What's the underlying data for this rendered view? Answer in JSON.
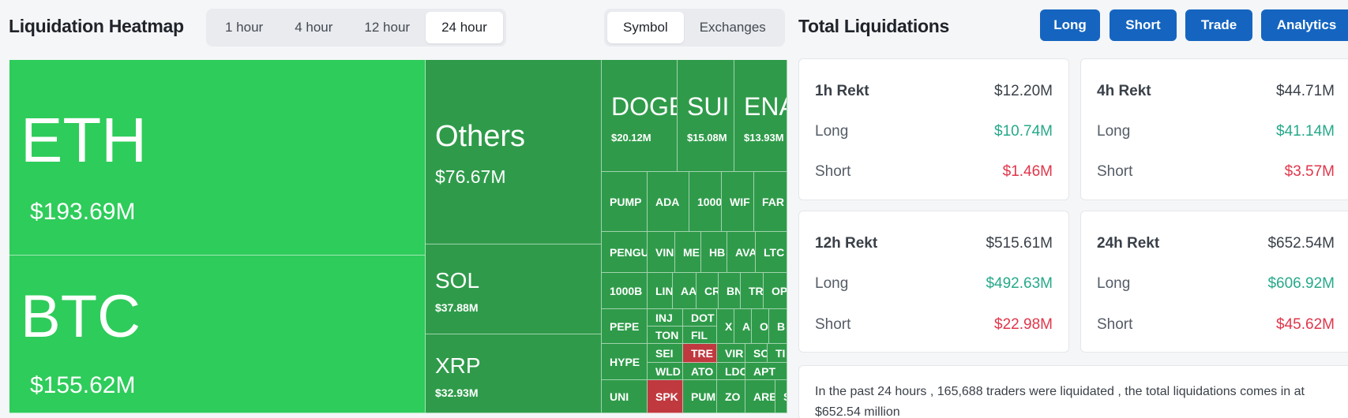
{
  "header": {
    "heatmap_title": "Liquidation Heatmap",
    "time_tabs": [
      "1 hour",
      "4 hour",
      "12 hour",
      "24 hour"
    ],
    "time_active": "24 hour",
    "view_tabs": [
      "Symbol",
      "Exchanges"
    ],
    "view_active": "Symbol",
    "total_title": "Total Liquidations",
    "buttons": [
      "Long",
      "Short",
      "Trade",
      "Analytics"
    ]
  },
  "heatmap": {
    "big": [
      {
        "symbol": "ETH",
        "amount": "$193.69M"
      },
      {
        "symbol": "BTC",
        "amount": "$155.62M"
      },
      {
        "symbol": "Others",
        "amount": "$76.67M"
      },
      {
        "symbol": "SOL",
        "amount": "$37.88M"
      },
      {
        "symbol": "XRP",
        "amount": "$32.93M"
      },
      {
        "symbol": "DOGE",
        "amount": "$20.12M"
      },
      {
        "symbol": "SUI",
        "amount": "$15.08M"
      },
      {
        "symbol": "ENA",
        "amount": "$13.93M"
      }
    ],
    "small": [
      "PUMP",
      "ADA",
      "1000",
      "WIF",
      "FAR",
      "PENGU",
      "VIN",
      "ME",
      "HB",
      "AVA",
      "LTC",
      "1000B",
      "LIN",
      "AA",
      "CR",
      "BN",
      "TR",
      "OP",
      "PEPE",
      "INJ",
      "DOT",
      "X",
      "A",
      "O",
      "B",
      "TON",
      "FIL",
      "TRE",
      "HYPE",
      "SEI",
      "VIR",
      "SO",
      "TI",
      "WLD",
      "ATO",
      "LDC",
      "UNI",
      "SPK",
      "PUM",
      "ZO",
      "APT",
      "ARB",
      "S"
    ]
  },
  "stats": [
    {
      "label": "1h Rekt",
      "total": "$12.20M",
      "long_label": "Long",
      "long": "$10.74M",
      "short_label": "Short",
      "short": "$1.46M"
    },
    {
      "label": "4h Rekt",
      "total": "$44.71M",
      "long_label": "Long",
      "long": "$41.14M",
      "short_label": "Short",
      "short": "$3.57M"
    },
    {
      "label": "12h Rekt",
      "total": "$515.61M",
      "long_label": "Long",
      "long": "$492.63M",
      "short_label": "Short",
      "short": "$22.98M"
    },
    {
      "label": "24h Rekt",
      "total": "$652.54M",
      "long_label": "Long",
      "long": "$606.92M",
      "short_label": "Short",
      "short": "$45.62M"
    }
  ],
  "summary": "In the past 24 hours , 165,688 traders were liquidated , the total liquidations comes in at $652.54 million",
  "colors": {
    "bright_green": "#2ecc5a",
    "dark_green": "#2f9b4a",
    "red_cell": "#c0393f",
    "button_blue": "#1565c0",
    "long_text": "#26a98a",
    "short_text": "#e0364a"
  }
}
